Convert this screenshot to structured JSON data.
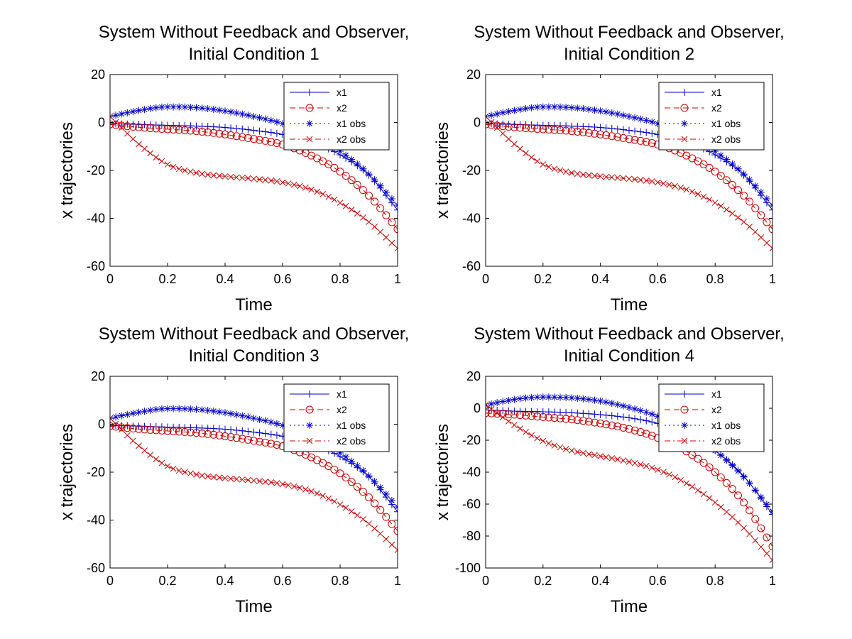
{
  "figure": {
    "background": "#ffffff"
  },
  "chart_data": [
    {
      "type": "line",
      "title": [
        "System Without Feedback and Observer,",
        "Initial Condition 1"
      ],
      "xlabel": "Time",
      "ylabel": "x trajectories",
      "xlim": [
        0,
        1
      ],
      "ylim": [
        -60,
        20
      ],
      "xticks": [
        0,
        0.2,
        0.4,
        0.6,
        0.8,
        1
      ],
      "yticks": [
        -60,
        -40,
        -20,
        0,
        20
      ],
      "legend_location": "top-right",
      "series": [
        {
          "name": "x1",
          "color": "#0000cc",
          "line_style": "solid",
          "marker": "plus",
          "x": [
            0,
            0.1,
            0.2,
            0.3,
            0.4,
            0.5,
            0.6,
            0.7,
            0.8,
            0.9,
            1.0
          ],
          "y": [
            -0.5,
            -0.8,
            -1.2,
            -1.5,
            -2.1,
            -3.3,
            -5.0,
            -8.2,
            -13.5,
            -22.0,
            -36.5
          ]
        },
        {
          "name": "x2",
          "color": "#cc0000",
          "line_style": "dashed",
          "marker": "circle",
          "x": [
            0,
            0.1,
            0.2,
            0.3,
            0.4,
            0.5,
            0.6,
            0.7,
            0.8,
            0.9,
            1.0
          ],
          "y": [
            -0.8,
            -2.0,
            -2.8,
            -3.6,
            -5.0,
            -6.9,
            -9.2,
            -13.8,
            -20.5,
            -30.5,
            -44.5
          ]
        },
        {
          "name": "x1 obs",
          "color": "#0000cc",
          "line_style": "dotted",
          "marker": "star",
          "x": [
            0,
            0.1,
            0.2,
            0.3,
            0.4,
            0.5,
            0.6,
            0.7,
            0.8,
            0.9,
            1.0
          ],
          "y": [
            2.5,
            5.0,
            6.5,
            6.2,
            4.8,
            2.5,
            -0.5,
            -5.2,
            -12.0,
            -21.5,
            -34.5
          ]
        },
        {
          "name": "x2 obs",
          "color": "#cc0000",
          "line_style": "dashdot",
          "marker": "x",
          "x": [
            0,
            0.1,
            0.2,
            0.3,
            0.4,
            0.5,
            0.6,
            0.7,
            0.8,
            0.9,
            1.0
          ],
          "y": [
            2.5,
            -9.0,
            -17.5,
            -21.0,
            -22.5,
            -23.5,
            -25.0,
            -28.0,
            -33.5,
            -41.5,
            -52.5
          ]
        }
      ]
    },
    {
      "type": "line",
      "title": [
        "System Without Feedback and Observer,",
        "Initial Condition 2"
      ],
      "xlabel": "Time",
      "ylabel": "x trajectories",
      "xlim": [
        0,
        1
      ],
      "ylim": [
        -60,
        20
      ],
      "xticks": [
        0,
        0.2,
        0.4,
        0.6,
        0.8,
        1
      ],
      "yticks": [
        -60,
        -40,
        -20,
        0,
        20
      ],
      "legend_location": "top-right",
      "series": [
        {
          "name": "x1",
          "color": "#0000cc",
          "line_style": "solid",
          "marker": "plus",
          "x": [
            0,
            0.1,
            0.2,
            0.3,
            0.4,
            0.5,
            0.6,
            0.7,
            0.8,
            0.9,
            1.0
          ],
          "y": [
            -0.5,
            -0.8,
            -1.2,
            -1.5,
            -2.1,
            -3.3,
            -5.0,
            -8.2,
            -13.5,
            -22.0,
            -36.5
          ]
        },
        {
          "name": "x2",
          "color": "#cc0000",
          "line_style": "dashed",
          "marker": "circle",
          "x": [
            0,
            0.1,
            0.2,
            0.3,
            0.4,
            0.5,
            0.6,
            0.7,
            0.8,
            0.9,
            1.0
          ],
          "y": [
            -0.8,
            -2.0,
            -2.8,
            -3.6,
            -5.0,
            -6.9,
            -9.2,
            -13.8,
            -20.5,
            -30.5,
            -44.5
          ]
        },
        {
          "name": "x1 obs",
          "color": "#0000cc",
          "line_style": "dotted",
          "marker": "star",
          "x": [
            0,
            0.1,
            0.2,
            0.3,
            0.4,
            0.5,
            0.6,
            0.7,
            0.8,
            0.9,
            1.0
          ],
          "y": [
            2.5,
            5.0,
            6.5,
            6.2,
            4.8,
            2.5,
            -0.5,
            -5.2,
            -12.0,
            -21.5,
            -34.5
          ]
        },
        {
          "name": "x2 obs",
          "color": "#cc0000",
          "line_style": "dashdot",
          "marker": "x",
          "x": [
            0,
            0.1,
            0.2,
            0.3,
            0.4,
            0.5,
            0.6,
            0.7,
            0.8,
            0.9,
            1.0
          ],
          "y": [
            2.5,
            -9.0,
            -17.5,
            -21.0,
            -22.5,
            -23.5,
            -25.0,
            -28.0,
            -33.5,
            -41.5,
            -52.5
          ]
        }
      ]
    },
    {
      "type": "line",
      "title": [
        "System Without Feedback and Observer,",
        "Initial Condition 3"
      ],
      "xlabel": "Time",
      "ylabel": "x trajectories",
      "xlim": [
        0,
        1
      ],
      "ylim": [
        -60,
        20
      ],
      "xticks": [
        0,
        0.2,
        0.4,
        0.6,
        0.8,
        1
      ],
      "yticks": [
        -60,
        -40,
        -20,
        0,
        20
      ],
      "legend_location": "top-right",
      "series": [
        {
          "name": "x1",
          "color": "#0000cc",
          "line_style": "solid",
          "marker": "plus",
          "x": [
            0,
            0.1,
            0.2,
            0.3,
            0.4,
            0.5,
            0.6,
            0.7,
            0.8,
            0.9,
            1.0
          ],
          "y": [
            -0.5,
            -0.8,
            -1.2,
            -1.5,
            -2.1,
            -3.3,
            -5.0,
            -8.2,
            -13.5,
            -22.0,
            -36.5
          ]
        },
        {
          "name": "x2",
          "color": "#cc0000",
          "line_style": "dashed",
          "marker": "circle",
          "x": [
            0,
            0.1,
            0.2,
            0.3,
            0.4,
            0.5,
            0.6,
            0.7,
            0.8,
            0.9,
            1.0
          ],
          "y": [
            -0.8,
            -2.0,
            -2.8,
            -3.6,
            -5.0,
            -6.9,
            -9.2,
            -13.8,
            -20.5,
            -30.5,
            -44.5
          ]
        },
        {
          "name": "x1 obs",
          "color": "#0000cc",
          "line_style": "dotted",
          "marker": "star",
          "x": [
            0,
            0.1,
            0.2,
            0.3,
            0.4,
            0.5,
            0.6,
            0.7,
            0.8,
            0.9,
            1.0
          ],
          "y": [
            2.5,
            5.0,
            6.5,
            6.2,
            4.8,
            2.5,
            -0.5,
            -5.2,
            -12.0,
            -21.5,
            -34.5
          ]
        },
        {
          "name": "x2 obs",
          "color": "#cc0000",
          "line_style": "dashdot",
          "marker": "x",
          "x": [
            0,
            0.1,
            0.2,
            0.3,
            0.4,
            0.5,
            0.6,
            0.7,
            0.8,
            0.9,
            1.0
          ],
          "y": [
            2.5,
            -9.0,
            -17.5,
            -21.0,
            -22.5,
            -23.5,
            -25.0,
            -28.0,
            -33.5,
            -41.5,
            -52.5
          ]
        }
      ]
    },
    {
      "type": "line",
      "title": [
        "System Without Feedback and Observer,",
        "Initial Condition 4"
      ],
      "xlabel": "Time",
      "ylabel": "x trajectories",
      "xlim": [
        0,
        1
      ],
      "ylim": [
        -100,
        20
      ],
      "xticks": [
        0,
        0.2,
        0.4,
        0.6,
        0.8,
        1
      ],
      "yticks": [
        -100,
        -80,
        -60,
        -40,
        -20,
        0,
        20
      ],
      "legend_location": "top-right",
      "series": [
        {
          "name": "x1",
          "color": "#0000cc",
          "line_style": "solid",
          "marker": "plus",
          "x": [
            0,
            0.1,
            0.2,
            0.3,
            0.4,
            0.5,
            0.6,
            0.7,
            0.8,
            0.9,
            1.0
          ],
          "y": [
            -1.0,
            -1.8,
            -2.2,
            -2.8,
            -4.0,
            -6.0,
            -9.5,
            -16.0,
            -26.5,
            -42.5,
            -66.5
          ]
        },
        {
          "name": "x2",
          "color": "#cc0000",
          "line_style": "dashed",
          "marker": "circle",
          "x": [
            0,
            0.1,
            0.2,
            0.3,
            0.4,
            0.5,
            0.6,
            0.7,
            0.8,
            0.9,
            1.0
          ],
          "y": [
            -3.0,
            -4.0,
            -5.5,
            -7.0,
            -9.5,
            -13.0,
            -18.5,
            -27.0,
            -40.0,
            -59.0,
            -86.5
          ]
        },
        {
          "name": "x1 obs",
          "color": "#0000cc",
          "line_style": "dotted",
          "marker": "star",
          "x": [
            0,
            0.1,
            0.2,
            0.3,
            0.4,
            0.5,
            0.6,
            0.7,
            0.8,
            0.9,
            1.0
          ],
          "y": [
            2.0,
            5.5,
            7.0,
            6.5,
            4.5,
            0.5,
            -5.0,
            -14.0,
            -26.5,
            -43.0,
            -64.5
          ]
        },
        {
          "name": "x2 obs",
          "color": "#cc0000",
          "line_style": "dashdot",
          "marker": "x",
          "x": [
            0,
            0.1,
            0.2,
            0.3,
            0.4,
            0.5,
            0.6,
            0.7,
            0.8,
            0.9,
            1.0
          ],
          "y": [
            2.0,
            -10.5,
            -20.5,
            -26.5,
            -30.0,
            -33.5,
            -38.5,
            -47.0,
            -59.0,
            -75.0,
            -95.0
          ]
        }
      ]
    }
  ]
}
